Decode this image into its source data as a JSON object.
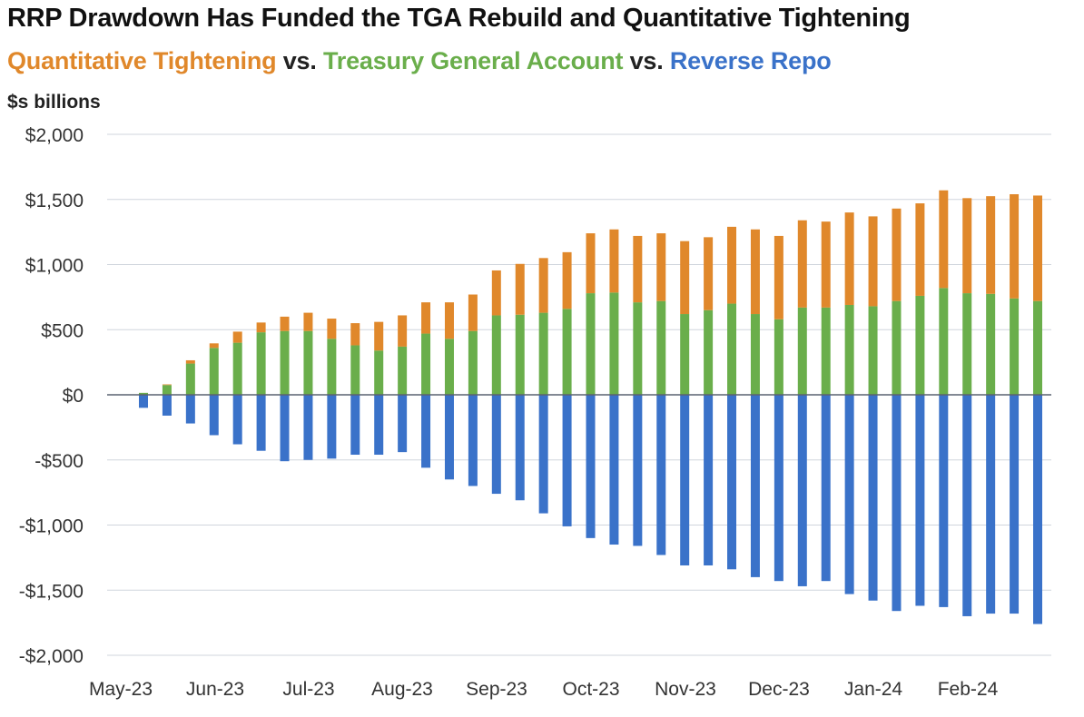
{
  "colors": {
    "qt": "#E0882B",
    "tga": "#6AAE4B",
    "rrp": "#3A72C9",
    "vs": "#222222",
    "grid": "#D0D5DD",
    "zero_line": "#5A6270"
  },
  "header": {
    "title": "RRP Drawdown Has Funded the TGA Rebuild and Quantitative Tightening",
    "subtitle": {
      "part1": "Quantitative Tightening",
      "sep1": " vs. ",
      "part2": "Treasury General Account",
      "sep2": " vs. ",
      "part3": "Reverse Repo"
    },
    "unit": "$s billions"
  },
  "chart_data": {
    "type": "bar",
    "stacked": true,
    "ylim": [
      -2000,
      2000
    ],
    "y_ticks": [
      2000,
      1500,
      1000,
      500,
      0,
      -500,
      -1000,
      -1500,
      -2000
    ],
    "y_tick_labels": [
      "$2,000",
      "$1,500",
      "$1,000",
      "$500",
      "$0",
      "-$500",
      "-$1,000",
      "-$1,500",
      "-$2,000"
    ],
    "x_labels": [
      "May-23",
      "Jun-23",
      "Jul-23",
      "Aug-23",
      "Sep-23",
      "Oct-23",
      "Nov-23",
      "Dec-23",
      "Jan-24",
      "Feb-24"
    ],
    "grid": true,
    "legend": "none",
    "series": [
      {
        "name": "Treasury General Account",
        "values": [
          15,
          75,
          240,
          360,
          400,
          480,
          490,
          490,
          430,
          380,
          340,
          370,
          470,
          430,
          490,
          610,
          615,
          630,
          660,
          780,
          785,
          710,
          720,
          620,
          650,
          700,
          620,
          580,
          670,
          670,
          690,
          680,
          720,
          760,
          820,
          780,
          775,
          740,
          720
        ]
      },
      {
        "name": "Quantitative Tightening",
        "values": [
          0,
          5,
          25,
          35,
          85,
          75,
          110,
          140,
          155,
          170,
          220,
          240,
          240,
          280,
          280,
          345,
          390,
          420,
          435,
          460,
          485,
          510,
          520,
          560,
          560,
          590,
          650,
          640,
          670,
          660,
          710,
          690,
          710,
          710,
          750,
          730,
          750,
          800,
          810
        ]
      },
      {
        "name": "Reverse Repo",
        "values": [
          -100,
          -160,
          -220,
          -310,
          -380,
          -430,
          -510,
          -500,
          -490,
          -460,
          -460,
          -440,
          -560,
          -650,
          -700,
          -760,
          -810,
          -910,
          -1010,
          -1100,
          -1150,
          -1160,
          -1230,
          -1310,
          -1310,
          -1340,
          -1400,
          -1430,
          -1470,
          -1430,
          -1530,
          -1580,
          -1660,
          -1620,
          -1630,
          -1700,
          -1680,
          -1680,
          -1760
        ]
      }
    ]
  }
}
